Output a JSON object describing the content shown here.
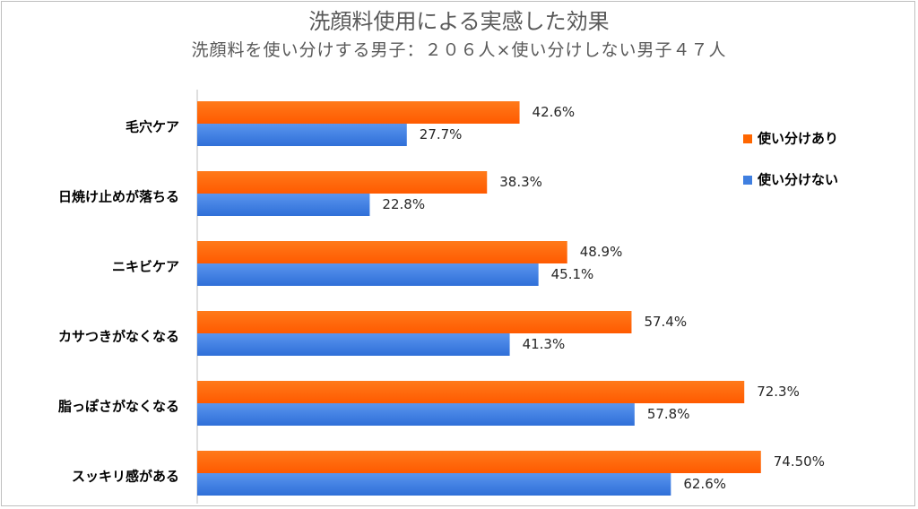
{
  "chart_data": {
    "type": "bar",
    "orientation": "horizontal",
    "title": "洗顔料使用による実感した効果",
    "subtitle": "洗顔料を使い分けする男子：２０６人×使い分けしない男子４７人",
    "categories": [
      "毛穴ケア",
      "日焼け止めが落ちる",
      "ニキビケア",
      "カサつきがなくなる",
      "脂っぽさがなくなる",
      "スッキリ感がある"
    ],
    "series": [
      {
        "name": "使い分けあり",
        "color": "#ff6600",
        "values": [
          42.6,
          38.3,
          48.9,
          57.4,
          72.3,
          74.5
        ],
        "labels": [
          "42.6%",
          "38.3%",
          "48.9%",
          "57.4%",
          "72.3%",
          "74.50%"
        ]
      },
      {
        "name": "使い分けない",
        "color": "#3f7fe0",
        "values": [
          27.7,
          22.8,
          45.1,
          41.3,
          57.8,
          62.6
        ],
        "labels": [
          "27.7%",
          "22.8%",
          "45.1%",
          "41.3%",
          "57.8%",
          "62.6%"
        ]
      }
    ],
    "xlim": [
      0,
      100
    ],
    "grid": false,
    "legend": "top-right"
  }
}
